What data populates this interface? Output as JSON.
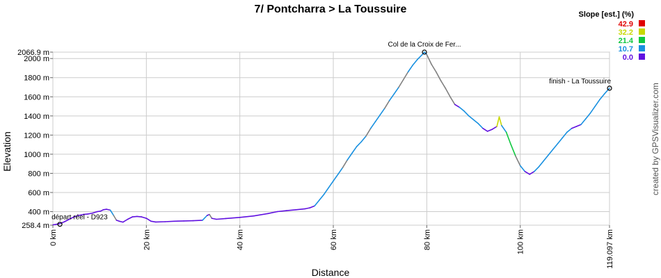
{
  "chart_data": {
    "type": "line",
    "title": "7/ Pontcharra > La Toussuire",
    "xlabel": "Distance",
    "ylabel": "Elevation",
    "xlim": [
      0,
      119.097
    ],
    "ylim": [
      258.4,
      2066.9
    ],
    "x_ticks": [
      {
        "value": 0,
        "label": "0 km"
      },
      {
        "value": 20,
        "label": "20 km"
      },
      {
        "value": 40,
        "label": "40 km"
      },
      {
        "value": 60,
        "label": "60 km"
      },
      {
        "value": 80,
        "label": "80 km"
      },
      {
        "value": 100,
        "label": "100 km"
      },
      {
        "value": 119.097,
        "label": "119.097 km"
      }
    ],
    "y_ticks": [
      {
        "value": 258.4,
        "label": "258.4 m"
      },
      {
        "value": 400,
        "label": "400 m"
      },
      {
        "value": 600,
        "label": "600 m"
      },
      {
        "value": 800,
        "label": "800 m"
      },
      {
        "value": 1000,
        "label": "1000 m"
      },
      {
        "value": 1200,
        "label": "1200 m"
      },
      {
        "value": 1400,
        "label": "1400 m"
      },
      {
        "value": 1600,
        "label": "1600 m"
      },
      {
        "value": 1800,
        "label": "1800 m"
      },
      {
        "value": 2000,
        "label": "2000 m"
      },
      {
        "value": 2066.9,
        "label": "2066.9 m"
      }
    ],
    "grid": true,
    "series": [
      {
        "x": [
          0,
          0.8,
          1.5,
          2.5,
          3.5,
          4.5,
          5.5,
          6.5,
          7.5,
          8.5,
          9.5,
          10.2,
          10.8,
          11.5,
          12.3,
          13,
          13.6,
          14.2,
          15,
          16,
          17,
          18,
          19,
          20,
          21,
          22,
          24,
          26,
          28,
          30,
          32,
          33,
          33.5,
          34,
          35,
          37,
          40,
          43,
          46,
          48,
          50,
          52,
          54,
          55,
          56,
          57,
          58,
          59,
          60,
          61,
          62,
          63,
          64,
          65,
          66,
          67,
          68,
          69,
          70,
          71,
          72,
          73,
          74,
          75,
          76,
          77,
          78,
          79,
          79.5,
          80,
          81,
          82,
          83,
          84,
          85,
          86,
          87,
          88,
          89,
          90,
          91,
          92,
          93,
          94,
          95,
          95.5,
          96,
          97,
          98,
          99,
          100,
          101,
          102,
          103,
          104,
          105,
          106,
          107,
          108,
          109,
          110,
          111,
          112,
          113,
          114,
          115,
          116,
          117,
          118,
          119.097
        ],
        "y": [
          262,
          268,
          275,
          295,
          320,
          345,
          360,
          370,
          375,
          385,
          400,
          405,
          420,
          425,
          415,
          360,
          310,
          300,
          290,
          320,
          345,
          350,
          345,
          330,
          300,
          292,
          295,
          300,
          303,
          305,
          310,
          360,
          370,
          330,
          320,
          328,
          340,
          355,
          380,
          400,
          410,
          420,
          430,
          440,
          460,
          520,
          580,
          650,
          720,
          790,
          860,
          940,
          1010,
          1080,
          1130,
          1190,
          1270,
          1340,
          1410,
          1480,
          1560,
          1630,
          1700,
          1780,
          1860,
          1930,
          1990,
          2040,
          2066.9,
          2040,
          1940,
          1860,
          1770,
          1690,
          1600,
          1520,
          1490,
          1450,
          1400,
          1360,
          1320,
          1270,
          1240,
          1260,
          1290,
          1390,
          1300,
          1230,
          1100,
          980,
          880,
          820,
          790,
          820,
          870,
          930,
          990,
          1050,
          1110,
          1170,
          1230,
          1270,
          1290,
          1310,
          1370,
          1430,
          1500,
          1570,
          1630,
          1690
        ]
      }
    ],
    "annotations": [
      {
        "label": "départ réel - D923",
        "x": 1.5,
        "y": 268
      },
      {
        "label": "Col de la Croix de Fer...",
        "x": 79.5,
        "y": 2066.9
      },
      {
        "label": "finish - La Toussuire",
        "x": 119.097,
        "y": 1690
      }
    ],
    "legend": {
      "title": "Slope [est.] (%)",
      "placement": "top-right",
      "entries": [
        {
          "label": "42.9",
          "color": "#e00000"
        },
        {
          "label": "32.2",
          "color": "#c8d800"
        },
        {
          "label": "21.4",
          "color": "#10c840"
        },
        {
          "label": "10.7",
          "color": "#1890e0"
        },
        {
          "label": "0.0",
          "color": "#6010e0"
        }
      ]
    },
    "credit": "created by GPSVisualizer.com"
  }
}
